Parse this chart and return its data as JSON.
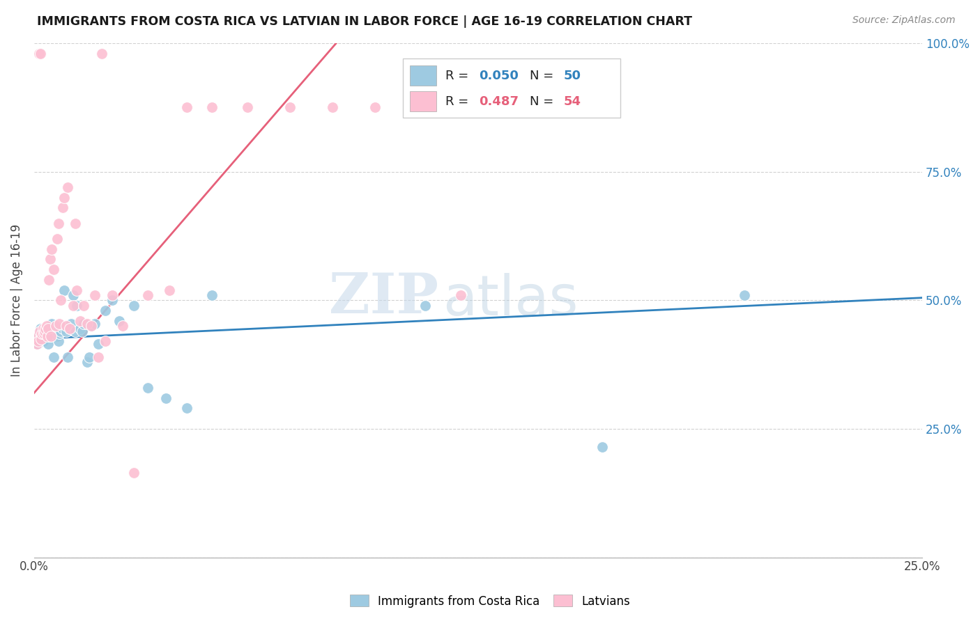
{
  "title": "IMMIGRANTS FROM COSTA RICA VS LATVIAN IN LABOR FORCE | AGE 16-19 CORRELATION CHART",
  "source": "Source: ZipAtlas.com",
  "ylabel": "In Labor Force | Age 16-19",
  "xlim": [
    0.0,
    0.25
  ],
  "ylim": [
    0.0,
    1.0
  ],
  "color_blue": "#9ecae1",
  "color_pink": "#fcbfd2",
  "color_line_blue": "#3182bd",
  "color_line_pink": "#e6607a",
  "watermark_zip": "ZIP",
  "watermark_atlas": "atlas",
  "blue_r": "0.050",
  "blue_n": "50",
  "pink_r": "0.487",
  "pink_n": "54",
  "blue_x": [
    0.0008,
    0.001,
    0.0012,
    0.0015,
    0.0018,
    0.002,
    0.0022,
    0.0025,
    0.003,
    0.0032,
    0.0035,
    0.0038,
    0.004,
    0.0042,
    0.0045,
    0.005,
    0.0055,
    0.006,
    0.0065,
    0.0068,
    0.007,
    0.0075,
    0.008,
    0.0085,
    0.009,
    0.0095,
    0.01,
    0.0105,
    0.011,
    0.0115,
    0.012,
    0.013,
    0.0135,
    0.014,
    0.015,
    0.0155,
    0.016,
    0.017,
    0.018,
    0.02,
    0.022,
    0.024,
    0.028,
    0.032,
    0.037,
    0.043,
    0.05,
    0.11,
    0.16,
    0.2
  ],
  "blue_y": [
    0.42,
    0.415,
    0.43,
    0.44,
    0.445,
    0.43,
    0.425,
    0.42,
    0.435,
    0.44,
    0.445,
    0.435,
    0.415,
    0.44,
    0.43,
    0.455,
    0.39,
    0.44,
    0.43,
    0.42,
    0.435,
    0.44,
    0.445,
    0.52,
    0.44,
    0.39,
    0.445,
    0.455,
    0.51,
    0.44,
    0.49,
    0.445,
    0.44,
    0.455,
    0.38,
    0.39,
    0.45,
    0.455,
    0.415,
    0.48,
    0.5,
    0.46,
    0.49,
    0.33,
    0.31,
    0.29,
    0.51,
    0.49,
    0.215,
    0.51
  ],
  "pink_x": [
    0.0008,
    0.001,
    0.0012,
    0.0013,
    0.0015,
    0.0018,
    0.002,
    0.0022,
    0.0025,
    0.0028,
    0.003,
    0.0032,
    0.0035,
    0.0038,
    0.004,
    0.0042,
    0.0045,
    0.0048,
    0.005,
    0.0055,
    0.006,
    0.0065,
    0.0068,
    0.007,
    0.0075,
    0.008,
    0.0085,
    0.009,
    0.0095,
    0.01,
    0.011,
    0.0115,
    0.012,
    0.013,
    0.014,
    0.015,
    0.016,
    0.017,
    0.018,
    0.019,
    0.02,
    0.022,
    0.025,
    0.028,
    0.032,
    0.038,
    0.043,
    0.05,
    0.06,
    0.072,
    0.084,
    0.096,
    0.109,
    0.12
  ],
  "pink_y": [
    0.415,
    0.43,
    0.42,
    0.98,
    0.44,
    0.98,
    0.425,
    0.435,
    0.445,
    0.435,
    0.44,
    0.445,
    0.45,
    0.43,
    0.445,
    0.54,
    0.58,
    0.43,
    0.6,
    0.56,
    0.45,
    0.62,
    0.65,
    0.455,
    0.5,
    0.68,
    0.7,
    0.45,
    0.72,
    0.445,
    0.49,
    0.65,
    0.52,
    0.46,
    0.49,
    0.455,
    0.45,
    0.51,
    0.39,
    0.98,
    0.42,
    0.51,
    0.45,
    0.165,
    0.51,
    0.52,
    0.875,
    0.875,
    0.875,
    0.875,
    0.875,
    0.875,
    0.875,
    0.51
  ]
}
